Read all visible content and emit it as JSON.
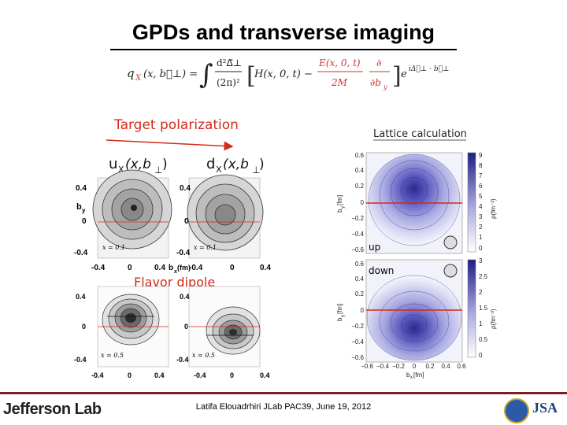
{
  "slide": {
    "title": "GPDs and transverse imaging",
    "footer": "Latifa Elouadrhiri  JLab PAC39, June 19, 2012",
    "logo_text": "Jefferson Lab",
    "jsa_text": "JSA"
  },
  "formula": {
    "lhs": "q",
    "lhs_sub": "X",
    "lhs_args": "(x, b⃗⊥) =",
    "integral": "∫",
    "num": "d²Δ⃗⊥",
    "den": "(2π)²",
    "h_term": "H(x, 0, t) −",
    "e_num": "E(x, 0, t)",
    "e_den": "2M",
    "d_num": "∂",
    "d_den": "∂b",
    "d_den_sub": "y",
    "exp_base": "e",
    "exp_pow": "iΔ⃗⊥ · b⃗⊥"
  },
  "left_panel": {
    "target_label": "Target polarization",
    "u_label": "u",
    "d_label": "d",
    "x_sub": "X",
    "args_u": "(x,b",
    "args_d": "(x,b",
    "perp": "⊥",
    "close_u": ")",
    "close_d": " )",
    "by_label": "b",
    "by_sub": "y",
    "bx_label": "b",
    "bx_sub": "x",
    "bx_unit": "(fm)",
    "flavor_label": "Flavor dipole",
    "x01": "x = 0.1",
    "x05": "x = 0.5",
    "ticks": [
      "0.4",
      "0",
      "-0.4"
    ],
    "xticks": [
      "-0.4",
      "0",
      "0.4"
    ]
  },
  "right_panel": {
    "lattice_label": "Lattice calculation",
    "up_label": "up",
    "down_label": "down",
    "y_axis": "b",
    "y_sub": "y",
    "y_unit": "[fm]",
    "x_axis": "b",
    "x_sub": "x",
    "x_unit": "[fm]",
    "rho_label": "ρ(fm⁻²)",
    "yticks": [
      "0.6",
      "0.4",
      "0.2",
      "0",
      "−0.2",
      "−0.4",
      "−0.6"
    ],
    "xticks": [
      "−0.6",
      "−0.4",
      "−0.2",
      "0",
      "0.2",
      "0.4",
      "0.6"
    ],
    "cbar_top": [
      "9",
      "8",
      "7",
      "6",
      "5",
      "4",
      "3",
      "2",
      "1",
      "0"
    ],
    "cbar_bottom": [
      "3",
      "2.5",
      "2",
      "1.5",
      "1",
      "0.5",
      "0"
    ]
  },
  "colors": {
    "accent_red": "#d42a1a",
    "contour_blue": "#2b2a8f",
    "footer_bar": "#7a1f1f"
  }
}
